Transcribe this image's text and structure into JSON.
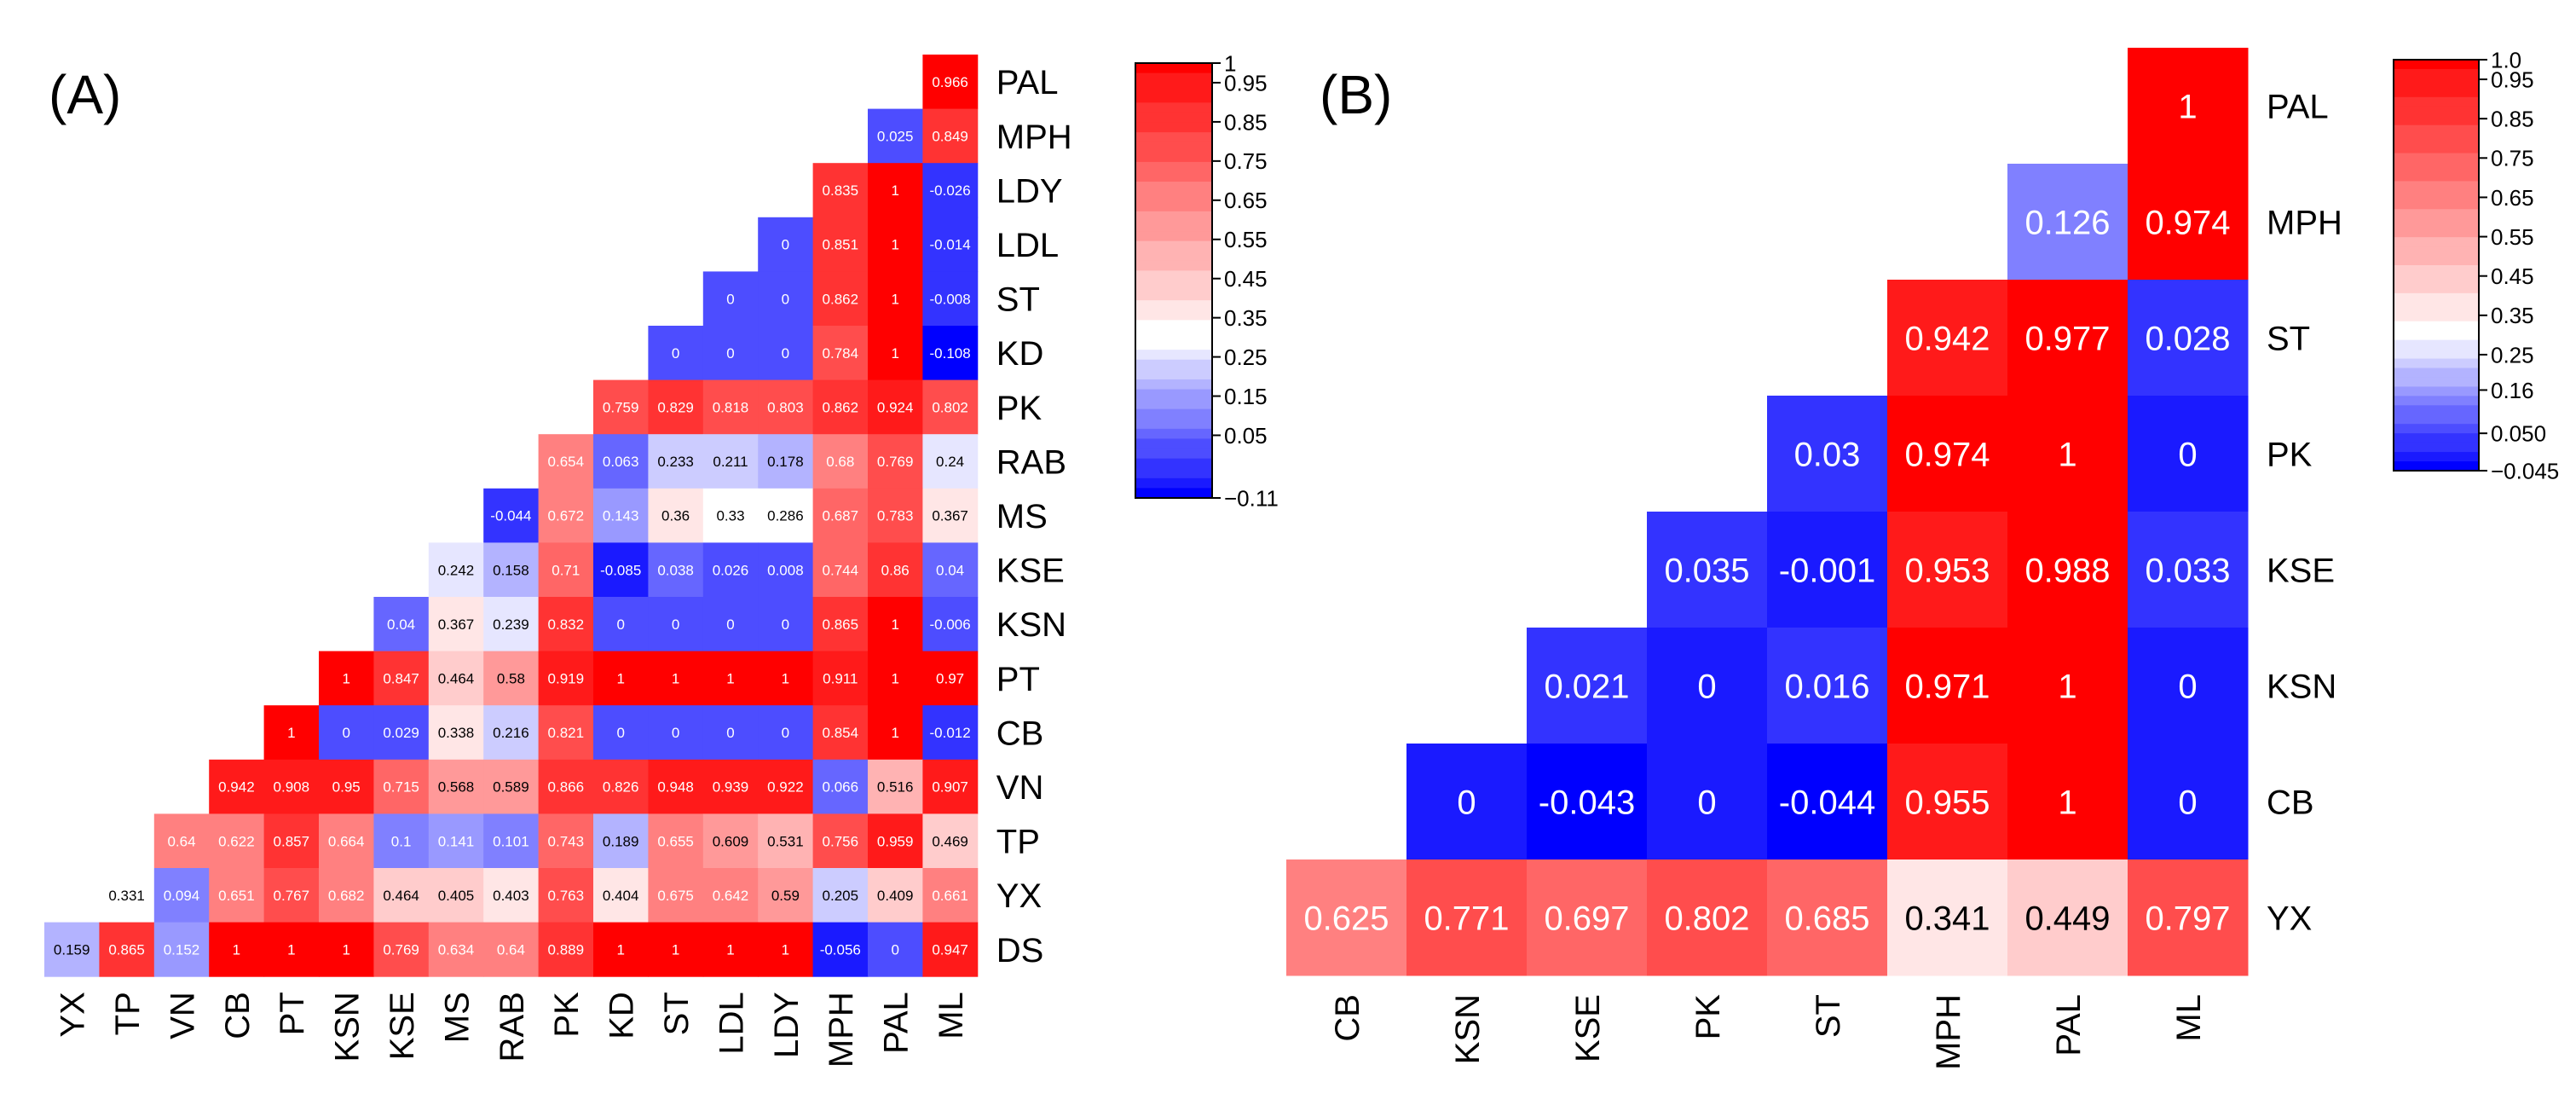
{
  "chart_data": [
    {
      "type": "heatmap",
      "panel_label": "(A)",
      "title": "",
      "xlabel": "",
      "ylabel": "",
      "rows": [
        "PAL",
        "MPH",
        "LDY",
        "LDL",
        "ST",
        "KD",
        "PK",
        "RAB",
        "MS",
        "KSE",
        "KSN",
        "PT",
        "CB",
        "VN",
        "TP",
        "YX",
        "DS"
      ],
      "cols": [
        "YX",
        "TP",
        "VN",
        "CB",
        "PT",
        "KSN",
        "KSE",
        "MS",
        "RAB",
        "PK",
        "KD",
        "ST",
        "LDL",
        "LDY",
        "MPH",
        "PAL",
        "ML"
      ],
      "values": [
        [
          0.966
        ],
        [
          0.025,
          0.849
        ],
        [
          0.835,
          1,
          -0.026
        ],
        [
          0,
          0.851,
          1,
          -0.014
        ],
        [
          0,
          0,
          0.862,
          1,
          -0.008
        ],
        [
          0,
          0,
          0,
          0.784,
          1,
          -0.108
        ],
        [
          0.759,
          0.829,
          0.818,
          0.803,
          0.862,
          0.924,
          0.802
        ],
        [
          0.654,
          0.063,
          0.233,
          0.211,
          0.178,
          0.68,
          0.769,
          0.24
        ],
        [
          -0.044,
          0.672,
          0.143,
          0.36,
          0.33,
          0.286,
          0.687,
          0.783,
          0.367
        ],
        [
          0.242,
          0.158,
          0.71,
          -0.085,
          0.038,
          0.026,
          0.008,
          0.744,
          0.86,
          0.04
        ],
        [
          0.04,
          0.367,
          0.239,
          0.832,
          0,
          0,
          0,
          0,
          0.865,
          1,
          -0.006
        ],
        [
          1,
          0.847,
          0.464,
          0.58,
          0.919,
          1,
          1,
          1,
          1,
          0.911,
          1,
          0.97
        ],
        [
          1,
          0,
          0.029,
          0.338,
          0.216,
          0.821,
          0,
          0,
          0,
          0,
          0.854,
          1,
          -0.012
        ],
        [
          0.942,
          0.908,
          0.95,
          0.715,
          0.568,
          0.589,
          0.866,
          0.826,
          0.948,
          0.939,
          0.922,
          0.066,
          0.516,
          0.907
        ],
        [
          0.64,
          0.622,
          0.857,
          0.664,
          0.1,
          0.141,
          0.101,
          0.743,
          0.189,
          0.655,
          0.609,
          0.531,
          0.756,
          0.959,
          0.469
        ],
        [
          0.331,
          0.094,
          0.651,
          0.767,
          0.682,
          0.464,
          0.405,
          0.403,
          0.763,
          0.404,
          0.675,
          0.642,
          0.59,
          0.205,
          0.409,
          0.661
        ],
        [
          0.159,
          0.865,
          0.152,
          1,
          1,
          1,
          0.769,
          0.634,
          0.64,
          0.889,
          1,
          1,
          1,
          1,
          -0.056,
          0,
          0.947
        ]
      ],
      "value_labels": [
        [
          "0.966"
        ],
        [
          "0.025",
          "0.849"
        ],
        [
          "0.835",
          "1",
          "-0.026"
        ],
        [
          "0",
          "0.851",
          "1",
          "-0.014"
        ],
        [
          "0",
          "0",
          "0.862",
          "1",
          "-0.008"
        ],
        [
          "0",
          "0",
          "0",
          "0.784",
          "1",
          "-0.108"
        ],
        [
          "0.759",
          "0.829",
          "0.818",
          "0.803",
          "0.862",
          "0.924",
          "0.802"
        ],
        [
          "0.654",
          "0.063",
          "0.233",
          "0.211",
          "0.178",
          "0.68",
          "0.769",
          "0.24"
        ],
        [
          "-0.044",
          "0.672",
          "0.143",
          "0.36",
          "0.33",
          "0.286",
          "0.687",
          "0.783",
          "0.367"
        ],
        [
          "0.242",
          "0.158",
          "0.71",
          "-0.085",
          "0.038",
          "0.026",
          "0.008",
          "0.744",
          "0.86",
          "0.04"
        ],
        [
          "0.04",
          "0.367",
          "0.239",
          "0.832",
          "0",
          "0",
          "0",
          "0",
          "0.865",
          "1",
          "-0.006"
        ],
        [
          "1",
          "0.847",
          "0.464",
          "0.58",
          "0.919",
          "1",
          "1",
          "1",
          "1",
          "0.911",
          "1",
          "0.97"
        ],
        [
          "1",
          "0",
          "0.029",
          "0.338",
          "0.216",
          "0.821",
          "0",
          "0",
          "0",
          "0",
          "0.854",
          "1",
          "-0.012"
        ],
        [
          "0.942",
          "0.908",
          "0.95",
          "0.715",
          "0.568",
          "0.589",
          "0.866",
          "0.826",
          "0.948",
          "0.939",
          "0.922",
          "0.066",
          "0.516",
          "0.907"
        ],
        [
          "0.64",
          "0.622",
          "0.857",
          "0.664",
          "0.1",
          "0.141",
          "0.101",
          "0.743",
          "0.189",
          "0.655",
          "0.609",
          "0.531",
          "0.756",
          "0.959",
          "0.469"
        ],
        [
          "0.331",
          "0.094",
          "0.651",
          "0.767",
          "0.682",
          "0.464",
          "0.405",
          "0.403",
          "0.763",
          "0.404",
          "0.675",
          "0.642",
          "0.59",
          "0.205",
          "0.409",
          "0.661"
        ],
        [
          "0.159",
          "0.865",
          "0.152",
          "1",
          "1",
          "1",
          "0.769",
          "0.634",
          "0.64",
          "0.889",
          "1",
          "1",
          "1",
          "1",
          "-0.056",
          "0",
          "0.947"
        ]
      ],
      "colorbar": {
        "min": -0.11,
        "max": 1,
        "ticks": [
          "1",
          "0.95",
          "0.85",
          "0.75",
          "0.65",
          "0.55",
          "0.45",
          "0.35",
          "0.25",
          "0.15",
          "0.05",
          "−0.11"
        ],
        "tick_values": [
          1,
          0.95,
          0.85,
          0.75,
          0.65,
          0.55,
          0.45,
          0.35,
          0.25,
          0.15,
          0.05,
          -0.11
        ],
        "colors": {
          "low": "#0000ff",
          "mid": "#ffffff",
          "high": "#ff0000"
        },
        "mid_value": 0.3
      }
    },
    {
      "type": "heatmap",
      "panel_label": "(B)",
      "title": "",
      "xlabel": "",
      "ylabel": "",
      "rows": [
        "PAL",
        "MPH",
        "ST",
        "PK",
        "KSE",
        "KSN",
        "CB",
        "YX"
      ],
      "cols": [
        "CB",
        "KSN",
        "KSE",
        "PK",
        "ST",
        "MPH",
        "PAL",
        "ML"
      ],
      "values": [
        [
          1
        ],
        [
          0.126,
          0.974
        ],
        [
          0.942,
          0.977,
          0.028
        ],
        [
          0.03,
          0.974,
          1,
          0
        ],
        [
          0.035,
          -0.001,
          0.953,
          0.988,
          0.033
        ],
        [
          0.021,
          0,
          0.016,
          0.971,
          1,
          0
        ],
        [
          0,
          -0.043,
          0,
          -0.044,
          0.955,
          1,
          0
        ],
        [
          0.625,
          0.771,
          0.697,
          0.802,
          0.685,
          0.341,
          0.449,
          0.797
        ]
      ],
      "value_labels": [
        [
          "1"
        ],
        [
          "0.126",
          "0.974"
        ],
        [
          "0.942",
          "0.977",
          "0.028"
        ],
        [
          "0.03",
          "0.974",
          "1",
          "0"
        ],
        [
          "0.035",
          "-0.001",
          "0.953",
          "0.988",
          "0.033"
        ],
        [
          "0.021",
          "0",
          "0.016",
          "0.971",
          "1",
          "0"
        ],
        [
          "0",
          "-0.043",
          "0",
          "-0.044",
          "0.955",
          "1",
          "0"
        ],
        [
          "0.625",
          "0.771",
          "0.697",
          "0.802",
          "0.685",
          "0.341",
          "0.449",
          "0.797"
        ]
      ],
      "colorbar": {
        "min": -0.045,
        "max": 1,
        "ticks": [
          "1.0",
          "0.95",
          "0.85",
          "0.75",
          "0.65",
          "0.55",
          "0.45",
          "0.35",
          "0.25",
          "0.16",
          "0.050",
          "−0.045"
        ],
        "tick_values": [
          1,
          0.95,
          0.85,
          0.75,
          0.65,
          0.55,
          0.45,
          0.35,
          0.25,
          0.16,
          0.05,
          -0.045
        ],
        "colors": {
          "low": "#0000ff",
          "mid": "#ffffff",
          "high": "#ff0000"
        },
        "mid_value": 0.3
      }
    }
  ]
}
